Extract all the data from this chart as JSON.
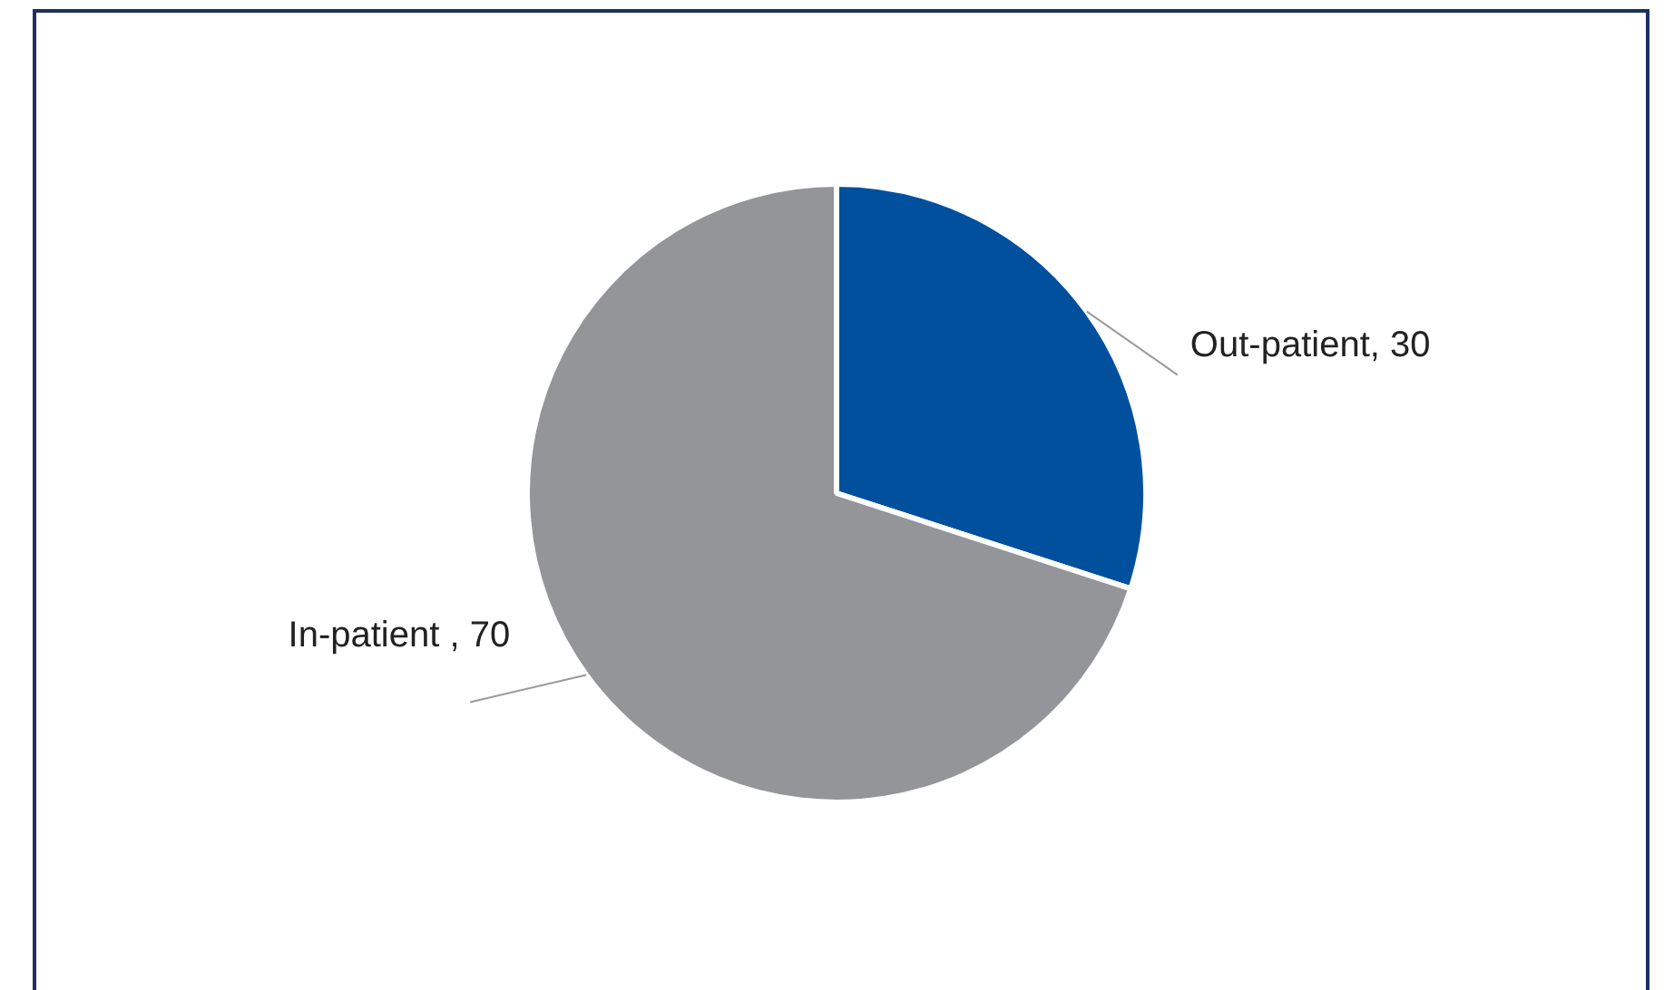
{
  "chart_data": {
    "type": "pie",
    "categories": [
      "Out-patient",
      "In-patient "
    ],
    "values": [
      30,
      70
    ],
    "colors": [
      "#00509e",
      "#939598"
    ],
    "value_labels": [
      ", 30",
      ", 70"
    ]
  }
}
